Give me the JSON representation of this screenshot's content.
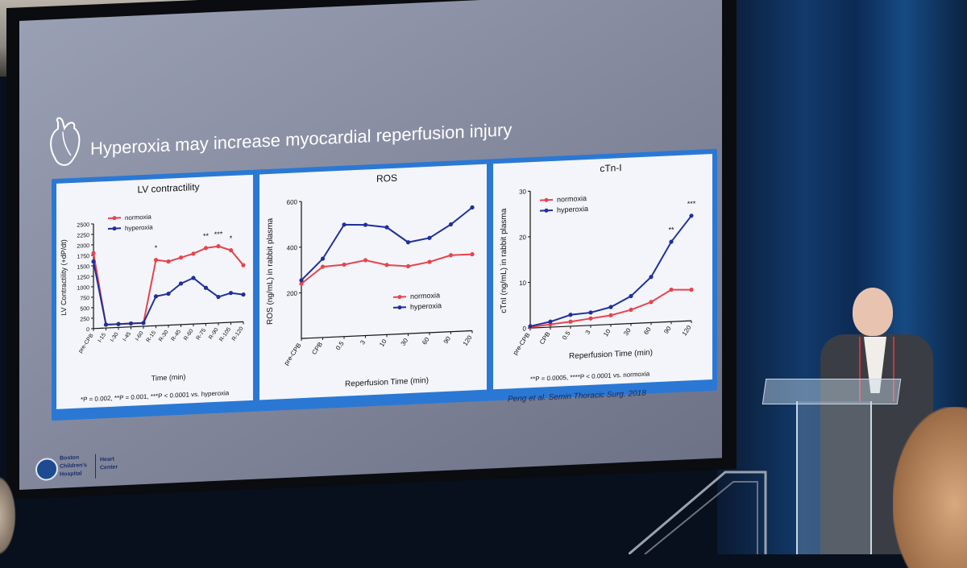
{
  "slide": {
    "title": "Hyperoxia may increase myocardial reperfusion injury",
    "citation": "Peng et al. Semin Thoracic Surg. 2018",
    "logo": {
      "line1": "Boston",
      "line2": "Children's",
      "line3": "Hospital",
      "dept1": "Heart",
      "dept2": "Center"
    }
  },
  "panels": {
    "lv": {
      "title": "LV contractility",
      "ylabel": "LV Contractility (+dP/dt)",
      "xlabel": "Time (min)",
      "footnote": "*P = 0.002, **P = 0.001, ***P < 0.0001 vs. hyperoxia",
      "legend": [
        "normoxia",
        "hyperoxia"
      ]
    },
    "ros": {
      "title": "ROS",
      "ylabel": "ROS (ng/mL) in rabbit plasma",
      "xlabel": "Reperfusion Time (min)",
      "legend": [
        "normoxia",
        "hyperoxia"
      ]
    },
    "ctni": {
      "title": "cTn-I",
      "ylabel": "cTnI (ng/mL) in rabbit plasma",
      "xlabel": "Reperfusion Time (min)",
      "footnote": "**P = 0.0005, ****P < 0.0001 vs. normoxia",
      "legend": [
        "normoxia",
        "hyperoxia"
      ]
    }
  },
  "colors": {
    "normoxia": "#e8434b",
    "hyperoxia": "#1f2f9c",
    "slide_frame": "#2a78d4"
  },
  "chart_data": [
    {
      "type": "line",
      "title": "LV contractility",
      "xlabel": "Time (min)",
      "ylabel": "LV Contractility (+dP/dt)",
      "categories": [
        "pre-CPB",
        "I-15",
        "I-30",
        "I-45",
        "I-60",
        "R-15",
        "R-30",
        "R-45",
        "R-60",
        "R-75",
        "R-90",
        "R-105",
        "R-120"
      ],
      "ylim": [
        0,
        2500
      ],
      "yticks": [
        0,
        250,
        500,
        750,
        1000,
        1250,
        1500,
        1750,
        2000,
        2250,
        2500
      ],
      "series": [
        {
          "name": "normoxia",
          "values": [
            1800,
            80,
            80,
            80,
            80,
            1570,
            1520,
            1600,
            1680,
            1800,
            1830,
            1720,
            1350
          ]
        },
        {
          "name": "hyperoxia",
          "values": [
            1600,
            80,
            80,
            80,
            80,
            700,
            750,
            980,
            1100,
            850,
            620,
            700,
            650
          ]
        }
      ],
      "annotations": [
        {
          "category": "R-15",
          "text": "*"
        },
        {
          "category": "R-75",
          "text": "**"
        },
        {
          "category": "R-90",
          "text": "***"
        },
        {
          "category": "R-105",
          "text": "*"
        }
      ]
    },
    {
      "type": "line",
      "title": "ROS",
      "xlabel": "Reperfusion Time (min)",
      "ylabel": "ROS (ng/mL) in rabbit plasma",
      "categories": [
        "pre-CPB",
        "CPB",
        "0.5",
        "3",
        "10",
        "30",
        "60",
        "90",
        "120"
      ],
      "ylim": [
        0,
        600
      ],
      "yticks": [
        200,
        400,
        600
      ],
      "series": [
        {
          "name": "normoxia",
          "values": [
            240,
            310,
            315,
            330,
            305,
            295,
            310,
            335,
            335
          ]
        },
        {
          "name": "hyperoxia",
          "values": [
            255,
            345,
            490,
            485,
            470,
            400,
            415,
            470,
            540
          ]
        }
      ]
    },
    {
      "type": "line",
      "title": "cTn-I",
      "xlabel": "Reperfusion Time (min)",
      "ylabel": "cTnI (ng/mL) in rabbit plasma",
      "categories": [
        "pre-CPB",
        "CPB",
        "0.5",
        "3",
        "10",
        "30",
        "60",
        "90",
        "120"
      ],
      "ylim": [
        0,
        30
      ],
      "yticks": [
        0,
        10,
        20,
        30
      ],
      "series": [
        {
          "name": "normoxia",
          "values": [
            0.2,
            0.6,
            1.0,
            1.5,
            2.0,
            3.0,
            4.5,
            7.0,
            6.8
          ]
        },
        {
          "name": "hyperoxia",
          "values": [
            0.4,
            1.2,
            2.5,
            2.8,
            3.8,
            6.0,
            10.0,
            17.5,
            23.0
          ]
        }
      ],
      "annotations": [
        {
          "category": "90",
          "text": "**"
        },
        {
          "category": "120",
          "text": "***"
        }
      ]
    }
  ]
}
